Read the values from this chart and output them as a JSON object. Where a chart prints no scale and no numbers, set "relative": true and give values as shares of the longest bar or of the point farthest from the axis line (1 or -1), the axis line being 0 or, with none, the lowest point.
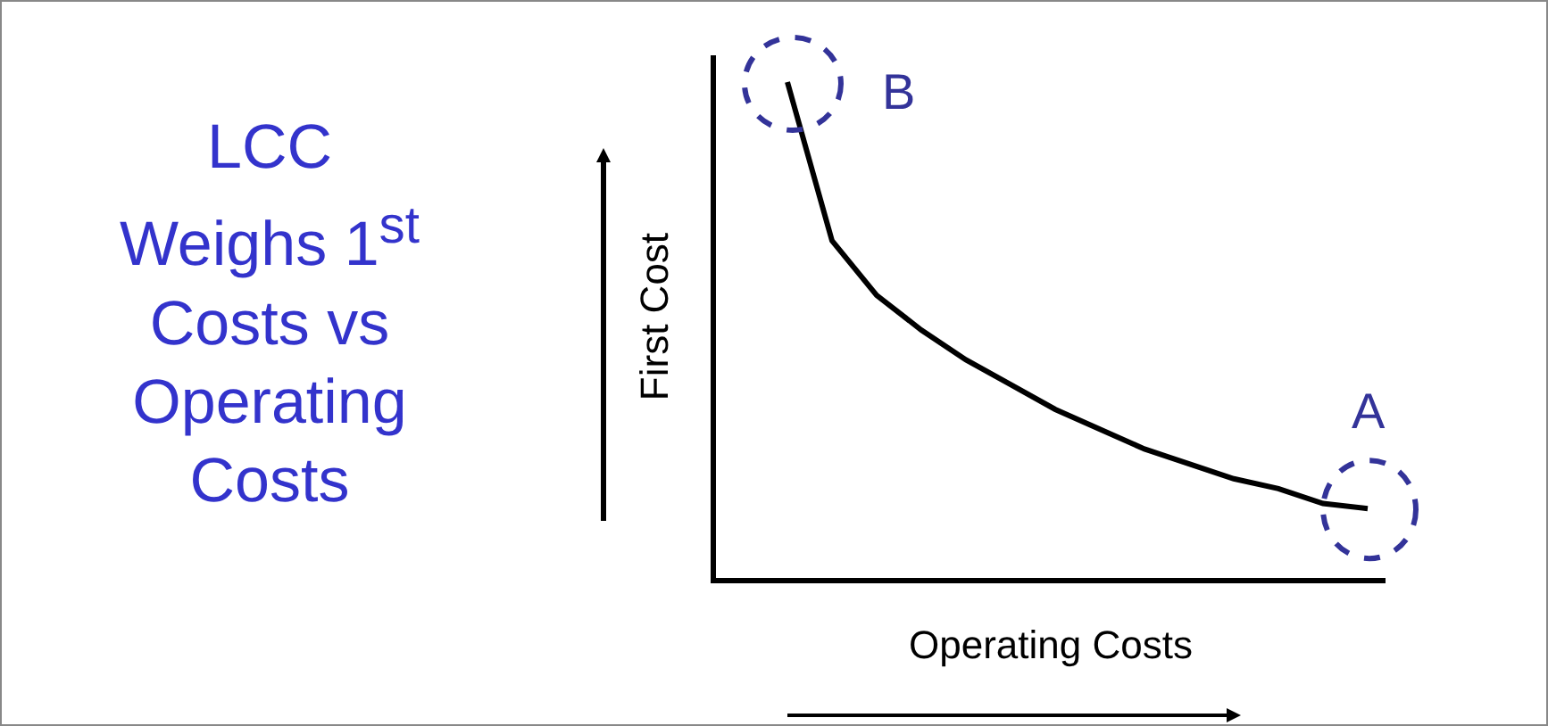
{
  "chart_data": {
    "type": "line",
    "title": "LCC Weighs 1$^{st}$ Costs vs Operating Costs",
    "xlabel": "Operating Costs",
    "ylabel": "First Cost",
    "relative": true,
    "categories": [
      null,
      null,
      null,
      null,
      null,
      null,
      null,
      null,
      null,
      null,
      null,
      null,
      null,
      null
    ],
    "series": [
      {
        "color": "#000000",
        "values": [
          1,
          0.68,
          0.57,
          0.5,
          0.44,
          0.39,
          0.34,
          0.3,
          0.26,
          0.23,
          0.2,
          0.18,
          0.15,
          0.14
        ]
      }
    ],
    "annotations": [
      "B",
      "A"
    ],
    "marker": "none",
    "line_style": "solid",
    "grid": false
  }
}
